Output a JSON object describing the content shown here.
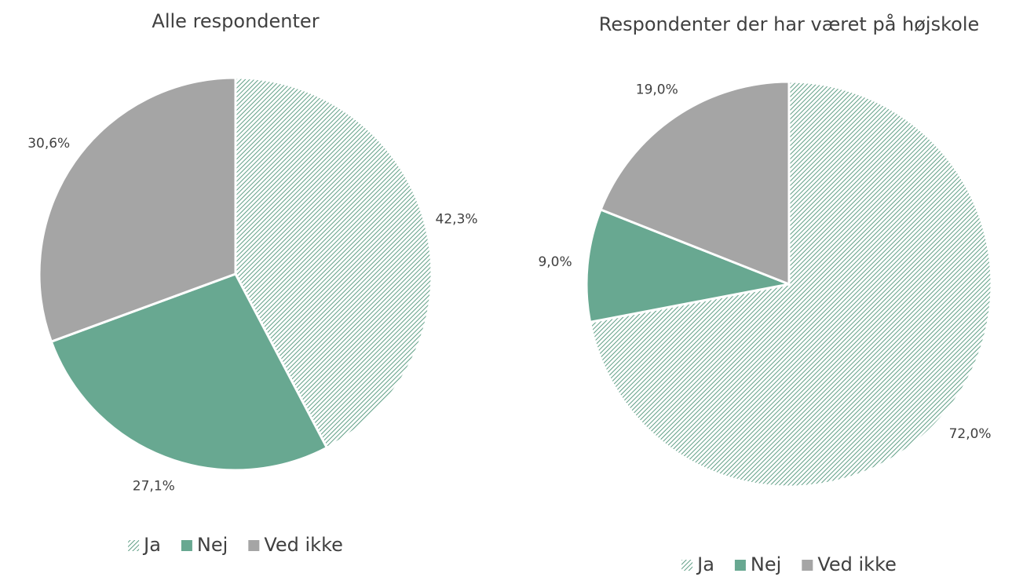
{
  "chart_data": [
    {
      "type": "pie",
      "title": "Alle respondenter",
      "categories": [
        "Ja",
        "Nej",
        "Ved ikke"
      ],
      "values": [
        42.3,
        27.1,
        30.6
      ],
      "value_labels": [
        "42,3%",
        "27,1%",
        "30,6%"
      ],
      "colors": [
        "#5f9e85",
        "#68a891",
        "#a5a5a5"
      ],
      "patterns": [
        "hatch",
        "solid",
        "solid"
      ],
      "legend": "bottom"
    },
    {
      "type": "pie",
      "title": "Respondenter der har været på højskole",
      "categories": [
        "Ja",
        "Nej",
        "Ved ikke"
      ],
      "values": [
        72.0,
        9.0,
        19.0
      ],
      "value_labels": [
        "72,0%",
        "9,0%",
        "19,0%"
      ],
      "colors": [
        "#5f9e85",
        "#68a891",
        "#a5a5a5"
      ],
      "patterns": [
        "hatch",
        "solid",
        "solid"
      ],
      "legend": "bottom"
    }
  ]
}
